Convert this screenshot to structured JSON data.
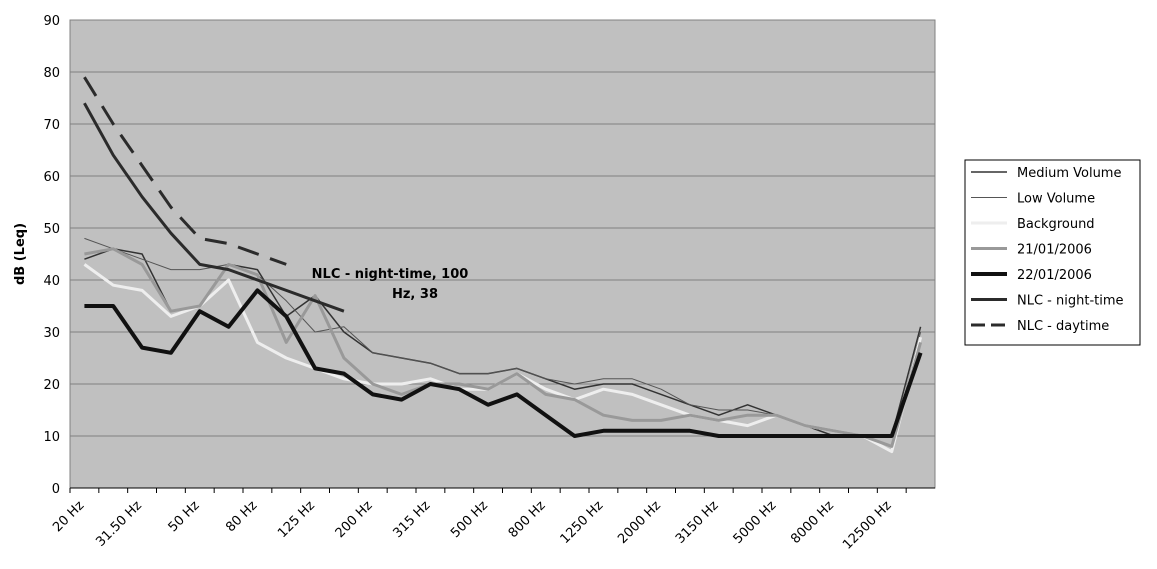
{
  "chart_data": {
    "type": "line",
    "y_label": "dB (Leq)",
    "categories": [
      "20 Hz",
      null,
      "31.50 Hz",
      null,
      "50 Hz",
      null,
      "80 Hz",
      null,
      "125 Hz",
      null,
      "200 Hz",
      null,
      "315 Hz",
      null,
      "500 Hz",
      null,
      "800 Hz",
      null,
      "1250 Hz",
      null,
      "2000 Hz",
      null,
      "3150 Hz",
      null,
      "5000 Hz",
      null,
      "8000 Hz",
      null,
      "12500 Hz",
      null
    ],
    "ylim": [
      0,
      90
    ],
    "yticks": [
      0,
      10,
      20,
      30,
      40,
      50,
      60,
      70,
      80,
      90
    ],
    "grid": true,
    "legend": "right",
    "annotation": [
      "NLC - night-time, 100",
      "Hz, 38"
    ],
    "series": [
      {
        "name": "Medium Volume",
        "color": "#333333",
        "values": [
          44,
          46,
          45,
          34,
          35,
          43,
          42,
          33,
          37,
          30,
          26,
          25,
          24,
          22,
          22,
          23,
          21,
          19,
          20,
          20,
          18,
          16,
          14,
          16,
          14,
          12,
          10,
          10,
          10,
          31
        ]
      },
      {
        "name": "Low Volume",
        "color": "#555555",
        "values": [
          48,
          46,
          44,
          42,
          42,
          43,
          41,
          36,
          30,
          31,
          26,
          25,
          24,
          22,
          22,
          23,
          21,
          20,
          21,
          21,
          19,
          16,
          15,
          15,
          14,
          12,
          11,
          10,
          8,
          30
        ]
      },
      {
        "name": "Background",
        "color": "#eeeeee",
        "values": [
          43,
          39,
          38,
          33,
          35,
          40,
          28,
          25,
          23,
          21,
          20,
          20,
          21,
          19,
          19,
          22,
          19,
          17,
          19,
          18,
          16,
          14,
          13,
          12,
          14,
          12,
          11,
          10,
          7,
          29
        ]
      },
      {
        "name": "21/01/2006",
        "color": "#999999",
        "values": [
          45,
          46,
          43,
          34,
          35,
          43,
          41,
          28,
          37,
          25,
          20,
          18,
          20,
          20,
          19,
          22,
          18,
          17,
          14,
          13,
          13,
          14,
          13,
          14,
          14,
          12,
          11,
          10,
          8,
          28
        ]
      },
      {
        "name": "22/01/2006",
        "color": "#111111",
        "values": [
          35,
          35,
          27,
          26,
          34,
          31,
          38,
          33,
          23,
          22,
          18,
          17,
          20,
          19,
          16,
          18,
          14,
          10,
          11,
          11,
          11,
          11,
          10,
          10,
          10,
          10,
          10,
          10,
          10,
          26
        ]
      },
      {
        "name": "NLC - night-time",
        "color": "#2b2b2b",
        "values": [
          74,
          64,
          56,
          49,
          43,
          42,
          40,
          38,
          36,
          34,
          null,
          null,
          null,
          null,
          null,
          null,
          null,
          null,
          null,
          null,
          null,
          null,
          null,
          null,
          null,
          null,
          null,
          null,
          null,
          null
        ]
      },
      {
        "name": "NLC - daytime",
        "color": "#2b2b2b",
        "dashed": true,
        "values": [
          79,
          70,
          62,
          54,
          48,
          47,
          45,
          43,
          null,
          null,
          null,
          null,
          null,
          null,
          null,
          null,
          null,
          null,
          null,
          null,
          null,
          null,
          null,
          null,
          null,
          null,
          null,
          null,
          null,
          null
        ]
      }
    ]
  }
}
